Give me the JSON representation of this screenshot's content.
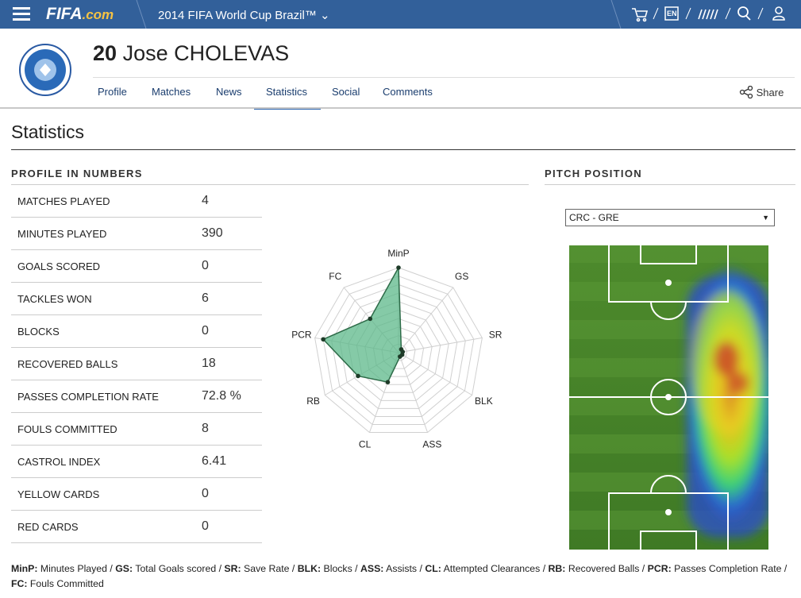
{
  "header": {
    "brand": "FIFA",
    "brand_suffix": ".com",
    "event": "2014 FIFA World Cup Brazil™",
    "language": "EN"
  },
  "player": {
    "number": "20",
    "name": "Jose CHOLEVAS"
  },
  "tabs": [
    "Profile",
    "Matches",
    "News",
    "Statistics",
    "Social",
    "Comments"
  ],
  "active_tab": "Statistics",
  "share": "Share",
  "section_title": "Statistics",
  "profile": {
    "title": "PROFILE IN NUMBERS",
    "rows": [
      [
        "MATCHES PLAYED",
        "4"
      ],
      [
        "MINUTES PLAYED",
        "390"
      ],
      [
        "GOALS SCORED",
        "0"
      ],
      [
        "TACKLES WON",
        "6"
      ],
      [
        "BLOCKS",
        "0"
      ],
      [
        "RECOVERED BALLS",
        "18"
      ],
      [
        "PASSES COMPLETION RATE",
        "72.8 %"
      ],
      [
        "FOULS COMMITTED",
        "8"
      ],
      [
        "CASTROL INDEX",
        "6.41"
      ],
      [
        "YELLOW CARDS",
        "0"
      ],
      [
        "RED CARDS",
        "0"
      ]
    ]
  },
  "chart_data": {
    "type": "radar",
    "axes": [
      "MinP",
      "GS",
      "SR",
      "BLK",
      "ASS",
      "CL",
      "RB",
      "PCR",
      "FC"
    ],
    "values": [
      10,
      0.5,
      0.5,
      0.5,
      0.5,
      3.7,
      5.5,
      9,
      5.2
    ],
    "rlim": [
      0,
      10
    ],
    "rticks": [
      1,
      2,
      3,
      4,
      5,
      6,
      7,
      8,
      9,
      10
    ],
    "color": "#5cb88a"
  },
  "pitch": {
    "title": "PITCH POSITION",
    "match": "CRC - GRE"
  },
  "legend": {
    "separator": "/",
    "items": [
      {
        "abbr": "MinP:",
        "text": "Minutes Played"
      },
      {
        "abbr": "GS:",
        "text": "Total Goals scored"
      },
      {
        "abbr": "SR:",
        "text": "Save Rate"
      },
      {
        "abbr": "BLK:",
        "text": "Blocks"
      },
      {
        "abbr": "ASS:",
        "text": "Assists"
      },
      {
        "abbr": "CL:",
        "text": "Attempted Clearances"
      },
      {
        "abbr": "RB:",
        "text": "Recovered Balls"
      },
      {
        "abbr": "PCR:",
        "text": "Passes Completion Rate"
      },
      {
        "abbr": "FC:",
        "text": "Fouls Committed"
      }
    ]
  }
}
